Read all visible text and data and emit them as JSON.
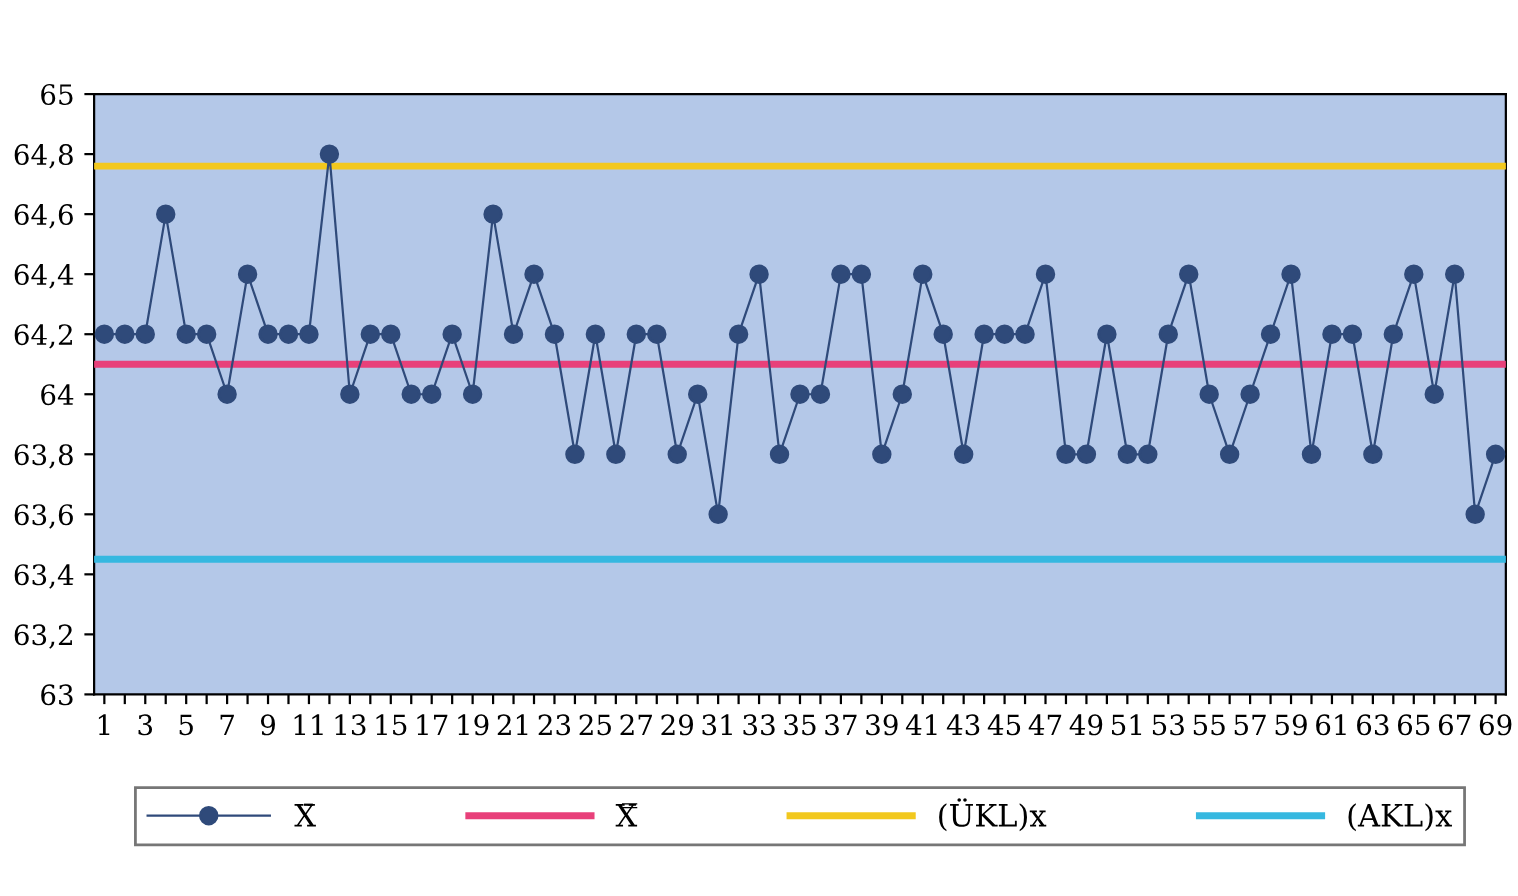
{
  "chart_data": {
    "type": "line",
    "categories": [
      "1",
      null,
      "3",
      null,
      "5",
      null,
      "7",
      null,
      "9",
      null,
      "11",
      null,
      "13",
      null,
      "15",
      null,
      "17",
      null,
      "19",
      null,
      "21",
      null,
      "23",
      null,
      "25",
      null,
      "27",
      null,
      "29",
      null,
      "31",
      null,
      "33",
      null,
      "35",
      null,
      "37",
      null,
      "39",
      null,
      "41",
      null,
      "43",
      null,
      "45",
      null,
      "47",
      null,
      "49",
      null,
      "51",
      null,
      "53",
      null,
      "55",
      null,
      "57",
      null,
      "59",
      null,
      "61",
      null,
      "63",
      null,
      "65",
      null,
      "67",
      null,
      "69"
    ],
    "series": [
      {
        "name": "X̄",
        "color": "#2f4a7a",
        "values": [
          64.2,
          64.2,
          64.2,
          64.6,
          64.2,
          64.2,
          64.0,
          64.4,
          64.2,
          64.2,
          64.2,
          64.8,
          64.0,
          64.2,
          64.2,
          64.0,
          64.0,
          64.2,
          64.0,
          64.6,
          64.2,
          64.4,
          64.2,
          63.8,
          64.2,
          63.8,
          64.2,
          64.2,
          63.8,
          64.0,
          63.6,
          64.2,
          64.4,
          63.8,
          64.0,
          64.0,
          64.4,
          64.4,
          63.8,
          64.0,
          64.4,
          64.2,
          63.8,
          64.2,
          64.2,
          64.2,
          64.4,
          63.8,
          63.8,
          64.2,
          63.8,
          63.8,
          64.2,
          64.4,
          64.0,
          63.8,
          64.0,
          64.2,
          64.4,
          63.8,
          64.2,
          64.2,
          63.8,
          64.2,
          64.4,
          64.0,
          64.4,
          63.6,
          63.8
        ]
      }
    ],
    "ref_lines": [
      {
        "axis": "y",
        "value": 64.1,
        "label": "X̿",
        "color": "#e8407a"
      },
      {
        "axis": "y",
        "value": 64.76,
        "label": "(ÜKL)x",
        "color": "#f2c81e"
      },
      {
        "axis": "y",
        "value": 63.45,
        "label": "(AKL)x",
        "color": "#36b8e0"
      }
    ],
    "ylim": [
      63,
      65
    ],
    "yticks": [
      63,
      {
        "value": 63.2,
        "label": "63,2"
      },
      {
        "value": 63.4,
        "label": "63,4"
      },
      {
        "value": 63.6,
        "label": "63,6"
      },
      {
        "value": 63.8,
        "label": "63,8"
      },
      64,
      {
        "value": 64.2,
        "label": "64,2"
      },
      {
        "value": 64.4,
        "label": "64,4"
      },
      {
        "value": 64.6,
        "label": "64,6"
      },
      {
        "value": 64.8,
        "label": "64,8"
      },
      65
    ],
    "grid": false,
    "legend": "bottom",
    "marker": "circle",
    "line_style": "solid"
  }
}
